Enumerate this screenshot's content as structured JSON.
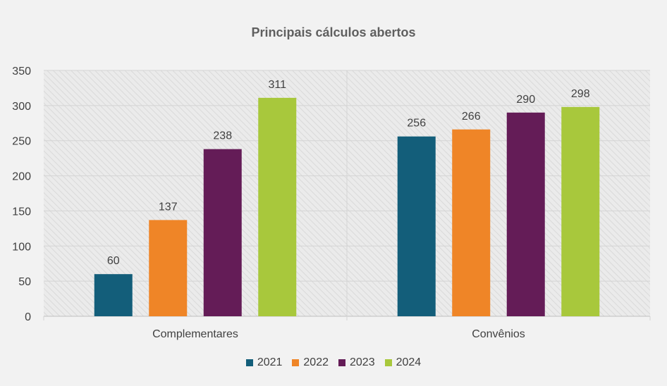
{
  "chart_data": {
    "type": "bar",
    "title": "Principais cálculos abertos",
    "xlabel": "",
    "ylabel": "",
    "categories": [
      "Complementares",
      "Convênios"
    ],
    "series": [
      {
        "name": "2021",
        "color": "#135e7a",
        "values": [
          60,
          256
        ]
      },
      {
        "name": "2022",
        "color": "#ef8527",
        "values": [
          137,
          266
        ]
      },
      {
        "name": "2023",
        "color": "#641c57",
        "values": [
          238,
          290
        ]
      },
      {
        "name": "2024",
        "color": "#a8c83c",
        "values": [
          311,
          298
        ]
      }
    ],
    "ylim": [
      0,
      350
    ],
    "yticks": [
      0,
      50,
      100,
      150,
      200,
      250,
      300,
      350
    ],
    "grid": true,
    "legend_position": "bottom",
    "data_labels": true
  }
}
